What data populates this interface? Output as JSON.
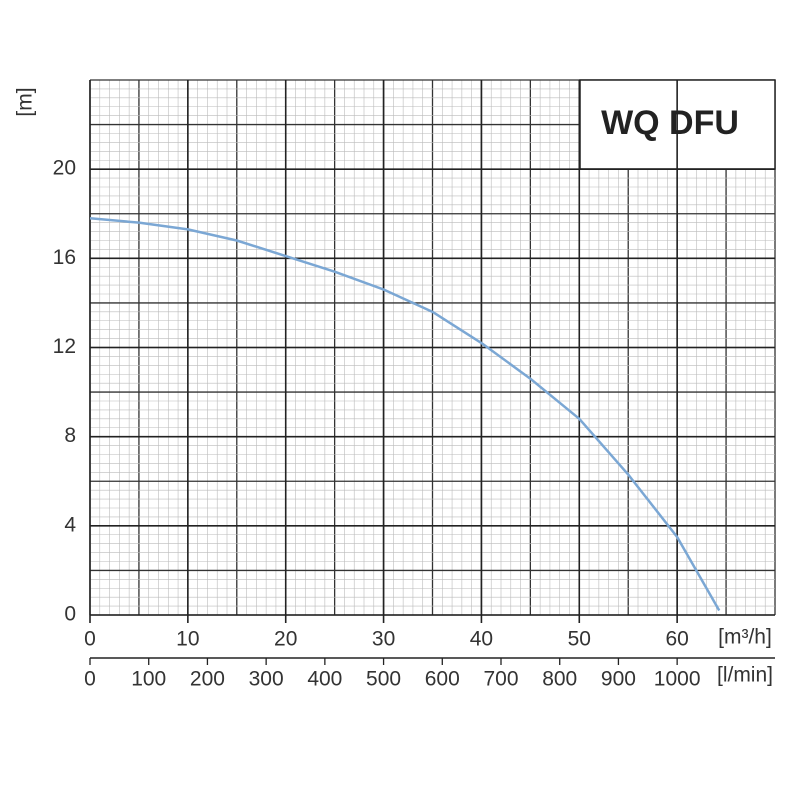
{
  "chart_data": {
    "type": "line",
    "title": "WQ DFU",
    "x_label": "[m³/h]",
    "x2_label": "[l/min]",
    "y_label": "[m]",
    "x": [
      0,
      5,
      10,
      15,
      20,
      25,
      30,
      35,
      40,
      45,
      50,
      55,
      60,
      64.3
    ],
    "values": [
      17.8,
      17.6,
      17.3,
      16.8,
      16.1,
      15.4,
      14.6,
      13.6,
      12.2,
      10.6,
      8.8,
      6.3,
      3.5,
      0.2
    ],
    "color": "#7ba7d4",
    "xlim": [
      0,
      70
    ],
    "xticks": [
      0,
      10,
      20,
      30,
      40,
      50,
      60
    ],
    "x2lim": [
      0,
      1166.67
    ],
    "x2ticks": [
      0,
      100,
      200,
      300,
      400,
      500,
      600,
      700,
      800,
      900,
      1000
    ],
    "ylim": [
      0,
      24
    ],
    "yticks": [
      0,
      4,
      8,
      12,
      16,
      20
    ],
    "grid": true
  }
}
